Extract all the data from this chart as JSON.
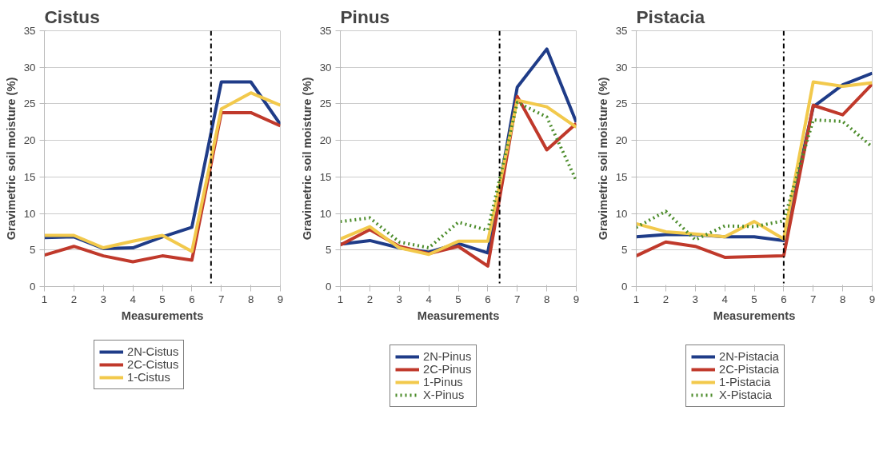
{
  "chart_data": [
    {
      "type": "line",
      "title": "Cistus",
      "xlabel": "Measurements",
      "ylabel": "Gravimetric soil moisture (%)",
      "x": [
        1,
        2,
        3,
        4,
        5,
        6,
        7,
        8,
        9
      ],
      "xlim": [
        1,
        9
      ],
      "xticks": [
        1,
        2,
        3,
        4,
        5,
        6,
        7,
        8,
        9
      ],
      "ylim": [
        0,
        35
      ],
      "yticks": [
        0,
        5,
        10,
        15,
        20,
        25,
        30,
        35
      ],
      "grid": "y",
      "legend": "bottom",
      "line_style": "solid",
      "ref_lines": [
        {
          "axis": "x",
          "value": 6.65,
          "color": "#000000",
          "line_style": "dashdot"
        }
      ],
      "series": [
        {
          "name": "2N-Cistus",
          "color": "#1f3c88",
          "values": [
            6.7,
            6.8,
            5.2,
            5.3,
            6.8,
            8.1,
            28,
            28,
            22.2
          ]
        },
        {
          "name": "2C-Cistus",
          "color": "#c0392b",
          "values": [
            4.3,
            5.5,
            4.2,
            3.4,
            4.2,
            3.6,
            23.8,
            23.8,
            22
          ]
        },
        {
          "name": "1-Cistus",
          "color": "#f2c94c",
          "values": [
            7,
            7,
            5.3,
            6.2,
            7,
            4.8,
            24.3,
            26.5,
            24.8
          ]
        }
      ]
    },
    {
      "type": "line",
      "title": "Pinus",
      "xlabel": "Measurements",
      "ylabel": "Gravimetric soil moisture (%)",
      "x": [
        1,
        2,
        3,
        4,
        5,
        6,
        7,
        8,
        9
      ],
      "xlim": [
        1,
        9
      ],
      "xticks": [
        1,
        2,
        3,
        4,
        5,
        6,
        7,
        8,
        9
      ],
      "ylim": [
        0,
        35
      ],
      "yticks": [
        0,
        5,
        10,
        15,
        20,
        25,
        30,
        35
      ],
      "grid": "y",
      "legend": "bottom",
      "line_style": "solid",
      "ref_lines": [
        {
          "axis": "x",
          "value": 6.4,
          "color": "#000000",
          "line_style": "dashdot"
        }
      ],
      "series": [
        {
          "name": "2N-Pinus",
          "color": "#1f3c88",
          "values": [
            5.8,
            6.3,
            5.3,
            4.7,
            5.9,
            4.6,
            27.3,
            32.5,
            22.5
          ]
        },
        {
          "name": "2C-Pinus",
          "color": "#c0392b",
          "values": [
            5.7,
            7.8,
            5.5,
            4.5,
            5.5,
            2.8,
            26,
            18.7,
            22.3
          ]
        },
        {
          "name": "1-Pinus",
          "color": "#f2c94c",
          "values": [
            6.5,
            8.2,
            5.3,
            4.4,
            6.2,
            6.2,
            25.5,
            24.6,
            21.8
          ]
        },
        {
          "name": "X-Pinus",
          "color": "#4c8c2b",
          "line_style": "dotted",
          "values": [
            8.9,
            9.4,
            6.1,
            5.3,
            8.8,
            7.7,
            25.2,
            23.2,
            14.5
          ]
        }
      ]
    },
    {
      "type": "line",
      "title": "Pistacia",
      "xlabel": "Measurements",
      "ylabel": "Gravimetric soil moisture (%)",
      "x": [
        1,
        2,
        3,
        4,
        5,
        6,
        7,
        8,
        9
      ],
      "xlim": [
        1,
        9
      ],
      "xticks": [
        1,
        2,
        3,
        4,
        5,
        6,
        7,
        8,
        9
      ],
      "ylim": [
        0,
        35
      ],
      "yticks": [
        0,
        5,
        10,
        15,
        20,
        25,
        30,
        35
      ],
      "grid": "y",
      "legend": "bottom",
      "line_style": "solid",
      "ref_lines": [
        {
          "axis": "x",
          "value": 6,
          "color": "#000000",
          "line_style": "dashdot"
        }
      ],
      "series": [
        {
          "name": "2N-Pistacia",
          "color": "#1f3c88",
          "values": [
            6.8,
            7.1,
            7.1,
            6.8,
            6.8,
            6.3,
            24.6,
            27.6,
            29.2
          ]
        },
        {
          "name": "2C-Pistacia",
          "color": "#c0392b",
          "values": [
            4.2,
            6.1,
            5.5,
            4,
            4.1,
            4.2,
            24.8,
            23.5,
            27.7
          ]
        },
        {
          "name": "1-Pistacia",
          "color": "#f2c94c",
          "values": [
            8.6,
            7.5,
            7.2,
            6.8,
            8.9,
            6.5,
            28,
            27.4,
            27.9
          ]
        },
        {
          "name": "X-Pistacia",
          "color": "#4c8c2b",
          "line_style": "dotted",
          "values": [
            8.1,
            10.3,
            6.4,
            8.3,
            8.2,
            9,
            22.8,
            22.6,
            19.1
          ]
        }
      ]
    }
  ]
}
